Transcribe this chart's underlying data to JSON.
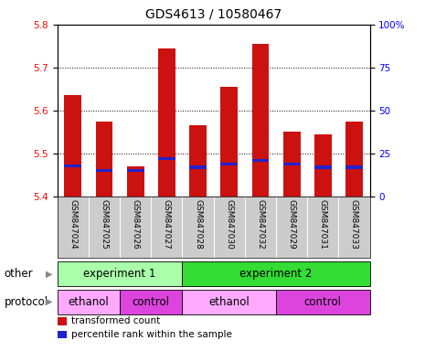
{
  "title": "GDS4613 / 10580467",
  "samples": [
    "GSM847024",
    "GSM847025",
    "GSM847026",
    "GSM847027",
    "GSM847028",
    "GSM847030",
    "GSM847032",
    "GSM847029",
    "GSM847031",
    "GSM847033"
  ],
  "bar_tops": [
    5.635,
    5.575,
    5.47,
    5.745,
    5.565,
    5.655,
    5.755,
    5.55,
    5.545,
    5.575
  ],
  "bar_bottoms": [
    5.4,
    5.4,
    5.4,
    5.4,
    5.4,
    5.4,
    5.4,
    5.4,
    5.4,
    5.4
  ],
  "percentile_values": [
    18,
    15,
    15,
    22,
    17,
    19,
    21,
    19,
    17,
    17
  ],
  "ylim_left": [
    5.4,
    5.8
  ],
  "ylim_right": [
    0,
    100
  ],
  "yticks_left": [
    5.4,
    5.5,
    5.6,
    5.7,
    5.8
  ],
  "yticks_right": [
    0,
    25,
    50,
    75,
    100
  ],
  "ytick_labels_right": [
    "0",
    "25",
    "50",
    "75",
    "100%"
  ],
  "bar_color": "#cc1111",
  "percentile_color": "#2222cc",
  "bar_width": 0.55,
  "grid_color": "black",
  "groups": [
    {
      "label": "experiment 1",
      "start": 0,
      "end": 4,
      "color": "#aaffaa"
    },
    {
      "label": "experiment 2",
      "start": 4,
      "end": 10,
      "color": "#33dd33"
    }
  ],
  "protocols": [
    {
      "label": "ethanol",
      "start": 0,
      "end": 2,
      "color": "#ffaaff"
    },
    {
      "label": "control",
      "start": 2,
      "end": 4,
      "color": "#dd44dd"
    },
    {
      "label": "ethanol",
      "start": 4,
      "end": 7,
      "color": "#ffaaff"
    },
    {
      "label": "control",
      "start": 7,
      "end": 10,
      "color": "#dd44dd"
    }
  ],
  "other_label": "other",
  "protocol_label": "protocol",
  "legend_items": [
    {
      "color": "#cc1111",
      "label": "transformed count"
    },
    {
      "color": "#2222cc",
      "label": "percentile rank within the sample"
    }
  ],
  "background_color": "#ffffff",
  "sample_area_color": "#cccccc"
}
